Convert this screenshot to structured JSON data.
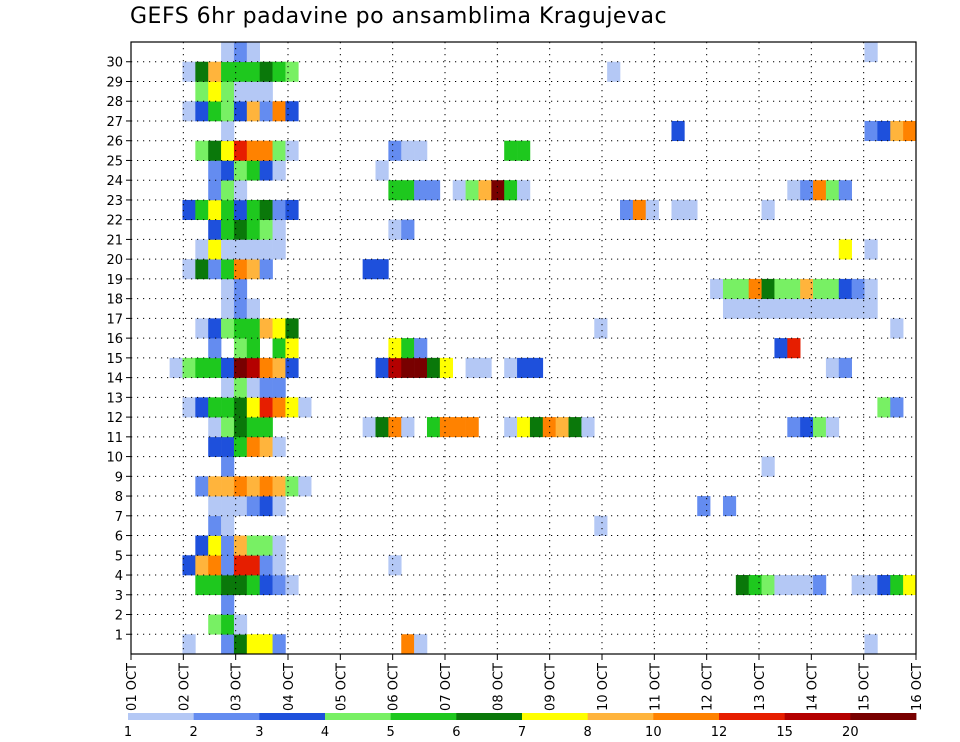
{
  "chart_data": {
    "type": "heatmap",
    "title": "GEFS 6hr padavine po ansamblima Kragujevac",
    "xlabel": "",
    "ylabel": "",
    "x_tick_labels": [
      "01 OCT",
      "02 OCT",
      "03 OCT",
      "04 OCT",
      "05 OCT",
      "06 OCT",
      "07 OCT",
      "08 OCT",
      "09 OCT",
      "10 OCT",
      "11 OCT",
      "12 OCT",
      "13 OCT",
      "14 OCT",
      "15 OCT",
      "16 OCT"
    ],
    "y_tick_labels": [
      "1",
      "2",
      "3",
      "4",
      "5",
      "6",
      "7",
      "8",
      "9",
      "10",
      "11",
      "12",
      "13",
      "14",
      "15",
      "16",
      "17",
      "18",
      "19",
      "20",
      "21",
      "22",
      "23",
      "24",
      "25",
      "26",
      "27",
      "28",
      "29",
      "30"
    ],
    "x_steps": 61,
    "y_members": 31,
    "legend": {
      "placement": "bottom",
      "thresholds": [
        "1",
        "2",
        "3",
        "4",
        "5",
        "6",
        "7",
        "8",
        "10",
        "12",
        "15",
        "20"
      ],
      "colors": [
        "#b4c8f5",
        "#648cf0",
        "#1e50dc",
        "#78f064",
        "#1ec81e",
        "#0a780a",
        "#ffff00",
        "#ffb43c",
        "#ff8200",
        "#e61e00",
        "#b40000",
        "#780000"
      ]
    },
    "cells": [
      [
        0,
        4,
        1
      ],
      [
        0,
        7,
        2
      ],
      [
        0,
        8,
        6
      ],
      [
        0,
        9,
        7
      ],
      [
        0,
        10,
        7
      ],
      [
        0,
        11,
        2
      ],
      [
        0,
        21,
        9
      ],
      [
        0,
        22,
        1
      ],
      [
        0,
        57,
        1
      ],
      [
        1,
        6,
        4
      ],
      [
        1,
        7,
        5
      ],
      [
        1,
        8,
        1
      ],
      [
        2,
        7,
        2
      ],
      [
        3,
        5,
        5
      ],
      [
        3,
        6,
        5
      ],
      [
        3,
        7,
        6
      ],
      [
        3,
        8,
        6
      ],
      [
        3,
        9,
        5
      ],
      [
        3,
        10,
        3
      ],
      [
        3,
        11,
        2
      ],
      [
        3,
        12,
        1
      ],
      [
        3,
        47,
        6
      ],
      [
        3,
        48,
        5
      ],
      [
        3,
        49,
        4
      ],
      [
        3,
        50,
        1
      ],
      [
        3,
        51,
        1
      ],
      [
        3,
        52,
        1
      ],
      [
        3,
        53,
        2
      ],
      [
        3,
        56,
        1
      ],
      [
        3,
        57,
        1
      ],
      [
        3,
        58,
        3
      ],
      [
        3,
        59,
        5
      ],
      [
        3,
        60,
        7
      ],
      [
        4,
        4,
        3
      ],
      [
        4,
        5,
        8
      ],
      [
        4,
        6,
        9
      ],
      [
        4,
        7,
        2
      ],
      [
        4,
        8,
        10
      ],
      [
        4,
        9,
        10
      ],
      [
        4,
        10,
        2
      ],
      [
        4,
        11,
        1
      ],
      [
        4,
        20,
        1
      ],
      [
        5,
        5,
        3
      ],
      [
        5,
        6,
        7
      ],
      [
        5,
        7,
        2
      ],
      [
        5,
        8,
        8
      ],
      [
        5,
        9,
        4
      ],
      [
        5,
        10,
        4
      ],
      [
        5,
        11,
        1
      ],
      [
        6,
        6,
        2
      ],
      [
        6,
        7,
        1
      ],
      [
        6,
        36,
        1
      ],
      [
        7,
        6,
        1
      ],
      [
        7,
        7,
        1
      ],
      [
        7,
        8,
        1
      ],
      [
        7,
        9,
        2
      ],
      [
        7,
        10,
        3
      ],
      [
        7,
        11,
        1
      ],
      [
        7,
        44,
        2
      ],
      [
        7,
        46,
        2
      ],
      [
        8,
        5,
        2
      ],
      [
        8,
        6,
        8
      ],
      [
        8,
        7,
        8
      ],
      [
        8,
        8,
        9
      ],
      [
        8,
        9,
        8
      ],
      [
        8,
        10,
        9
      ],
      [
        8,
        11,
        8
      ],
      [
        8,
        12,
        4
      ],
      [
        8,
        13,
        1
      ],
      [
        9,
        7,
        2
      ],
      [
        9,
        49,
        1
      ],
      [
        10,
        6,
        3
      ],
      [
        10,
        7,
        3
      ],
      [
        10,
        8,
        5
      ],
      [
        10,
        9,
        9
      ],
      [
        10,
        10,
        8
      ],
      [
        10,
        11,
        1
      ],
      [
        11,
        6,
        1
      ],
      [
        11,
        7,
        4
      ],
      [
        11,
        8,
        6
      ],
      [
        11,
        9,
        5
      ],
      [
        11,
        10,
        5
      ],
      [
        11,
        18,
        1
      ],
      [
        11,
        19,
        6
      ],
      [
        11,
        20,
        9
      ],
      [
        11,
        21,
        1
      ],
      [
        11,
        23,
        5
      ],
      [
        11,
        24,
        9
      ],
      [
        11,
        25,
        9
      ],
      [
        11,
        26,
        9
      ],
      [
        11,
        29,
        1
      ],
      [
        11,
        30,
        7
      ],
      [
        11,
        31,
        6
      ],
      [
        11,
        32,
        9
      ],
      [
        11,
        33,
        8
      ],
      [
        11,
        34,
        6
      ],
      [
        11,
        35,
        1
      ],
      [
        11,
        51,
        2
      ],
      [
        11,
        52,
        3
      ],
      [
        11,
        53,
        4
      ],
      [
        11,
        54,
        1
      ],
      [
        12,
        4,
        1
      ],
      [
        12,
        5,
        3
      ],
      [
        12,
        6,
        5
      ],
      [
        12,
        7,
        5
      ],
      [
        12,
        8,
        6
      ],
      [
        12,
        9,
        7
      ],
      [
        12,
        10,
        10
      ],
      [
        12,
        11,
        9
      ],
      [
        12,
        12,
        7
      ],
      [
        12,
        13,
        1
      ],
      [
        12,
        58,
        4
      ],
      [
        12,
        59,
        2
      ],
      [
        13,
        7,
        1
      ],
      [
        13,
        8,
        4
      ],
      [
        13,
        9,
        1
      ],
      [
        13,
        10,
        2
      ],
      [
        13,
        11,
        2
      ],
      [
        14,
        3,
        1
      ],
      [
        14,
        4,
        4
      ],
      [
        14,
        5,
        5
      ],
      [
        14,
        6,
        5
      ],
      [
        14,
        7,
        3
      ],
      [
        14,
        8,
        12
      ],
      [
        14,
        9,
        11
      ],
      [
        14,
        10,
        9
      ],
      [
        14,
        11,
        8
      ],
      [
        14,
        12,
        3
      ],
      [
        14,
        19,
        3
      ],
      [
        14,
        20,
        11
      ],
      [
        14,
        21,
        12
      ],
      [
        14,
        22,
        12
      ],
      [
        14,
        23,
        6
      ],
      [
        14,
        24,
        7
      ],
      [
        14,
        26,
        1
      ],
      [
        14,
        27,
        1
      ],
      [
        14,
        29,
        1
      ],
      [
        14,
        30,
        3
      ],
      [
        14,
        31,
        3
      ],
      [
        14,
        54,
        1
      ],
      [
        14,
        55,
        2
      ],
      [
        15,
        6,
        2
      ],
      [
        15,
        8,
        4
      ],
      [
        15,
        9,
        5
      ],
      [
        15,
        11,
        5
      ],
      [
        15,
        12,
        7
      ],
      [
        15,
        20,
        7
      ],
      [
        15,
        21,
        5
      ],
      [
        15,
        22,
        2
      ],
      [
        15,
        50,
        3
      ],
      [
        15,
        51,
        10
      ],
      [
        16,
        5,
        1
      ],
      [
        16,
        6,
        3
      ],
      [
        16,
        7,
        4
      ],
      [
        16,
        8,
        5
      ],
      [
        16,
        9,
        5
      ],
      [
        16,
        10,
        8
      ],
      [
        16,
        11,
        7
      ],
      [
        16,
        12,
        6
      ],
      [
        16,
        36,
        1
      ],
      [
        16,
        59,
        1
      ],
      [
        17,
        7,
        1
      ],
      [
        17,
        8,
        2
      ],
      [
        17,
        9,
        1
      ],
      [
        17,
        46,
        1
      ],
      [
        17,
        47,
        1
      ],
      [
        17,
        48,
        1
      ],
      [
        17,
        49,
        1
      ],
      [
        17,
        50,
        1
      ],
      [
        17,
        51,
        1
      ],
      [
        17,
        52,
        1
      ],
      [
        17,
        53,
        1
      ],
      [
        17,
        54,
        1
      ],
      [
        17,
        55,
        1
      ],
      [
        17,
        56,
        1
      ],
      [
        17,
        57,
        1
      ],
      [
        18,
        7,
        1
      ],
      [
        18,
        8,
        2
      ],
      [
        18,
        45,
        1
      ],
      [
        18,
        46,
        4
      ],
      [
        18,
        47,
        4
      ],
      [
        18,
        48,
        9
      ],
      [
        18,
        49,
        6
      ],
      [
        18,
        50,
        4
      ],
      [
        18,
        51,
        4
      ],
      [
        18,
        52,
        8
      ],
      [
        18,
        53,
        4
      ],
      [
        18,
        54,
        4
      ],
      [
        18,
        55,
        3
      ],
      [
        18,
        56,
        2
      ],
      [
        18,
        57,
        1
      ],
      [
        19,
        4,
        1
      ],
      [
        19,
        5,
        6
      ],
      [
        19,
        6,
        2
      ],
      [
        19,
        7,
        5
      ],
      [
        19,
        8,
        9
      ],
      [
        19,
        9,
        8
      ],
      [
        19,
        10,
        2
      ],
      [
        19,
        18,
        3
      ],
      [
        19,
        19,
        3
      ],
      [
        20,
        5,
        1
      ],
      [
        20,
        6,
        7
      ],
      [
        20,
        7,
        1
      ],
      [
        20,
        8,
        1
      ],
      [
        20,
        9,
        1
      ],
      [
        20,
        10,
        1
      ],
      [
        20,
        11,
        1
      ],
      [
        20,
        55,
        7
      ],
      [
        20,
        57,
        1
      ],
      [
        21,
        6,
        3
      ],
      [
        21,
        7,
        5
      ],
      [
        21,
        8,
        6
      ],
      [
        21,
        9,
        5
      ],
      [
        21,
        10,
        4
      ],
      [
        21,
        11,
        1
      ],
      [
        21,
        20,
        1
      ],
      [
        21,
        21,
        2
      ],
      [
        22,
        4,
        3
      ],
      [
        22,
        5,
        5
      ],
      [
        22,
        6,
        7
      ],
      [
        22,
        7,
        5
      ],
      [
        22,
        8,
        3
      ],
      [
        22,
        9,
        5
      ],
      [
        22,
        10,
        6
      ],
      [
        22,
        11,
        2
      ],
      [
        22,
        12,
        3
      ],
      [
        22,
        38,
        2
      ],
      [
        22,
        39,
        9
      ],
      [
        22,
        40,
        1
      ],
      [
        22,
        42,
        1
      ],
      [
        22,
        43,
        1
      ],
      [
        22,
        49,
        1
      ],
      [
        23,
        6,
        2
      ],
      [
        23,
        7,
        4
      ],
      [
        23,
        8,
        1
      ],
      [
        23,
        20,
        5
      ],
      [
        23,
        21,
        5
      ],
      [
        23,
        22,
        2
      ],
      [
        23,
        23,
        2
      ],
      [
        23,
        25,
        1
      ],
      [
        23,
        26,
        4
      ],
      [
        23,
        27,
        8
      ],
      [
        23,
        28,
        12
      ],
      [
        23,
        29,
        5
      ],
      [
        23,
        30,
        1
      ],
      [
        23,
        51,
        1
      ],
      [
        23,
        52,
        2
      ],
      [
        23,
        53,
        9
      ],
      [
        23,
        54,
        4
      ],
      [
        23,
        55,
        2
      ],
      [
        24,
        6,
        2
      ],
      [
        24,
        7,
        3
      ],
      [
        24,
        8,
        4
      ],
      [
        24,
        9,
        5
      ],
      [
        24,
        10,
        3
      ],
      [
        24,
        11,
        1
      ],
      [
        24,
        19,
        1
      ],
      [
        25,
        5,
        4
      ],
      [
        25,
        6,
        6
      ],
      [
        25,
        7,
        7
      ],
      [
        25,
        8,
        10
      ],
      [
        25,
        9,
        9
      ],
      [
        25,
        10,
        9
      ],
      [
        25,
        11,
        4
      ],
      [
        25,
        12,
        1
      ],
      [
        25,
        20,
        2
      ],
      [
        25,
        21,
        1
      ],
      [
        25,
        22,
        1
      ],
      [
        25,
        29,
        5
      ],
      [
        25,
        30,
        5
      ],
      [
        26,
        7,
        1
      ],
      [
        26,
        42,
        3
      ],
      [
        26,
        57,
        2
      ],
      [
        26,
        58,
        3
      ],
      [
        26,
        59,
        8
      ],
      [
        26,
        60,
        9
      ],
      [
        27,
        4,
        1
      ],
      [
        27,
        5,
        3
      ],
      [
        27,
        6,
        5
      ],
      [
        27,
        7,
        4
      ],
      [
        27,
        8,
        3
      ],
      [
        27,
        9,
        8
      ],
      [
        27,
        10,
        2
      ],
      [
        27,
        11,
        9
      ],
      [
        27,
        12,
        3
      ],
      [
        28,
        5,
        4
      ],
      [
        28,
        6,
        7
      ],
      [
        28,
        7,
        4
      ],
      [
        28,
        8,
        1
      ],
      [
        28,
        9,
        1
      ],
      [
        28,
        10,
        1
      ],
      [
        29,
        4,
        1
      ],
      [
        29,
        5,
        6
      ],
      [
        29,
        6,
        8
      ],
      [
        29,
        7,
        5
      ],
      [
        29,
        8,
        5
      ],
      [
        29,
        9,
        5
      ],
      [
        29,
        10,
        6
      ],
      [
        29,
        11,
        5
      ],
      [
        29,
        12,
        4
      ],
      [
        29,
        37,
        1
      ],
      [
        30,
        7,
        1
      ],
      [
        30,
        8,
        2
      ],
      [
        30,
        9,
        1
      ],
      [
        30,
        57,
        1
      ]
    ]
  }
}
